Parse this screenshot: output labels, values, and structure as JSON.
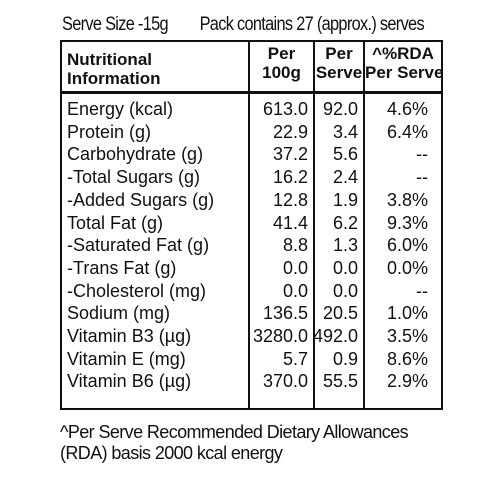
{
  "serve_size": "Serve Size -15g",
  "pack_contains": "Pack contains 27 (approx.) serves",
  "table": {
    "headers": {
      "nutrient_line1": "Nutritional",
      "nutrient_line2": "Information",
      "per100_line1": "Per",
      "per100_line2": "100g",
      "perserve_line1": "Per",
      "perserve_line2": "Serve",
      "rda_line1": "^%RDA",
      "rda_line2": "Per Serve"
    },
    "rows": [
      {
        "nutrient": "Energy (kcal)",
        "per100": "613.0",
        "perserve": "92.0",
        "rda": "4.6%"
      },
      {
        "nutrient": "Protein (g)",
        "per100": "22.9",
        "perserve": "3.4",
        "rda": "6.4%"
      },
      {
        "nutrient": "Carbohydrate (g)",
        "per100": "37.2",
        "perserve": "5.6",
        "rda": "--"
      },
      {
        "nutrient": "-Total Sugars (g)",
        "per100": "16.2",
        "perserve": "2.4",
        "rda": "--"
      },
      {
        "nutrient": "-Added Sugars (g)",
        "per100": "12.8",
        "perserve": "1.9",
        "rda": "3.8%"
      },
      {
        "nutrient": "Total Fat (g)",
        "per100": "41.4",
        "perserve": "6.2",
        "rda": "9.3%"
      },
      {
        "nutrient": "-Saturated Fat (g)",
        "per100": "8.8",
        "perserve": "1.3",
        "rda": "6.0%"
      },
      {
        "nutrient": "-Trans Fat (g)",
        "per100": "0.0",
        "perserve": "0.0",
        "rda": "0.0%"
      },
      {
        "nutrient": "-Cholesterol (mg)",
        "per100": "0.0",
        "perserve": "0.0",
        "rda": "--"
      },
      {
        "nutrient": "Sodium (mg)",
        "per100": "136.5",
        "perserve": "20.5",
        "rda": "1.0%"
      },
      {
        "nutrient": "Vitamin B3 (µg)",
        "per100": "3280.0",
        "perserve": "492.0",
        "rda": "3.5%"
      },
      {
        "nutrient": "Vitamin E (mg)",
        "per100": "5.7",
        "perserve": "0.9",
        "rda": "8.6%"
      },
      {
        "nutrient": "Vitamin B6 (µg)",
        "per100": "370.0",
        "perserve": "55.5",
        "rda": "2.9%"
      }
    ]
  },
  "footnote_line1": "^Per Serve Recommended Dietary Allowances",
  "footnote_line2": "(RDA) basis 2000 kcal energy"
}
